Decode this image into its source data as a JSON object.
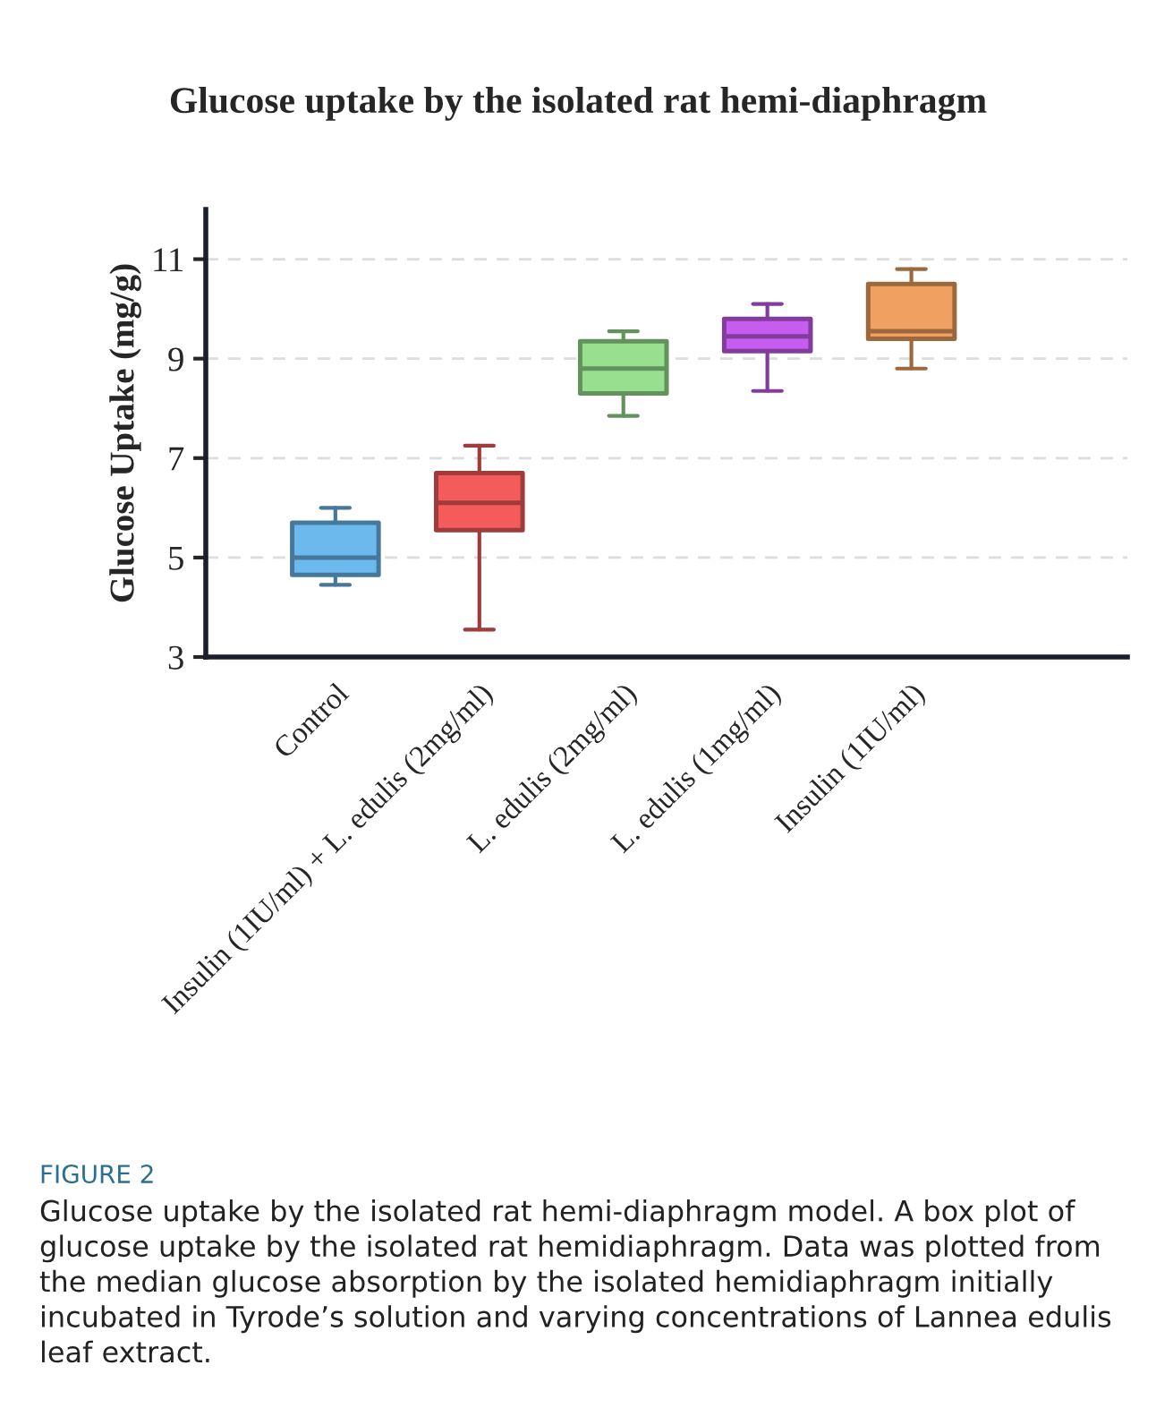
{
  "chart_data": {
    "type": "box",
    "title": "Glucose uptake by the isolated rat hemi-diaphragm",
    "ylabel": "Glucose Uptake (mg/g)",
    "categories": [
      "Control",
      "Insulin (1IU/ml) + L. edulis (2mg/ml)",
      "L. edulis (2mg/ml)",
      "L. edulis (1mg/ml)",
      "Insulin (1IU/ml)"
    ],
    "boxes": [
      {
        "low": 4.45,
        "q1": 4.65,
        "median": 5.0,
        "q3": 5.7,
        "high": 6.0
      },
      {
        "low": 3.55,
        "q1": 5.55,
        "median": 6.1,
        "q3": 6.7,
        "high": 7.25
      },
      {
        "low": 7.85,
        "q1": 8.3,
        "median": 8.8,
        "q3": 9.35,
        "high": 9.55
      },
      {
        "low": 8.35,
        "q1": 9.15,
        "median": 9.45,
        "q3": 9.8,
        "high": 10.1
      },
      {
        "low": 8.8,
        "q1": 9.4,
        "median": 9.55,
        "q3": 10.5,
        "high": 10.8
      }
    ],
    "colors": [
      "#6cb9ee",
      "#f45b5b",
      "#98e08f",
      "#c65cf0",
      "#f0a060"
    ],
    "ylim": [
      3,
      12
    ],
    "yticks": [
      3,
      5,
      7,
      9,
      11
    ],
    "grid": "y",
    "annotations": [
      "FIGURE 2",
      "Glucose uptake by the isolated rat hemi-diaphragm model. A box plot of glucose uptake by the isolated rat hemidiaphragm. Data was plotted from the median glucose absorption by the isolated hemidiaphragm initially incubated in Tyrode’s solution and varying concentrations of Lannea edulis leaf extract."
    ]
  }
}
